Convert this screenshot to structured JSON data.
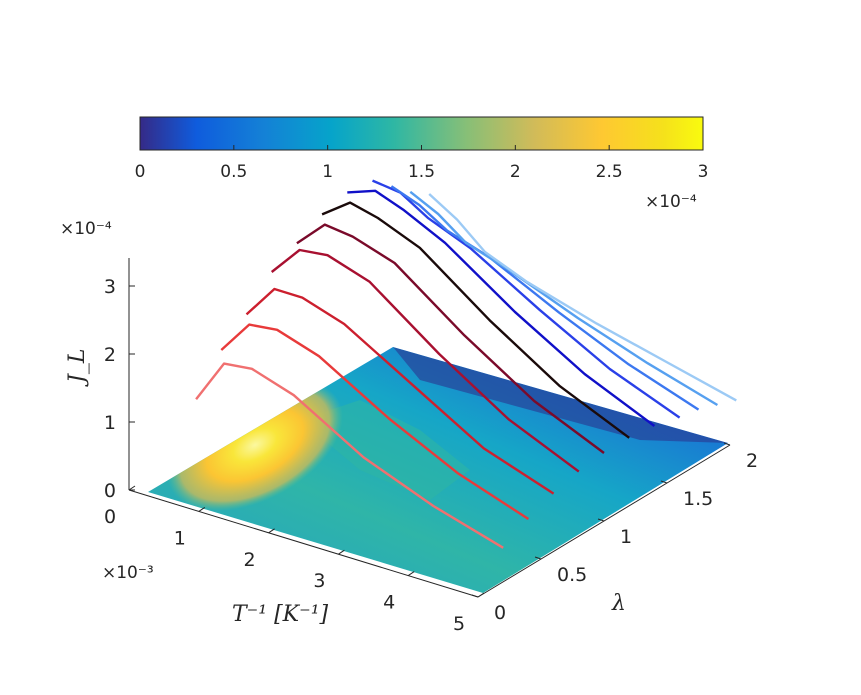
{
  "chart_data": {
    "type": "surface3d-with-lines",
    "title": "",
    "colorbar": {
      "min": 0,
      "max": 3,
      "ticks": [
        "0",
        "0.5",
        "1",
        "1.5",
        "2",
        "2.5",
        "3"
      ],
      "exponent_label": "×10⁻⁴",
      "colormap": "parula"
    },
    "axes": {
      "x": {
        "label": "T⁻¹ [K⁻¹]",
        "ticks": [
          "0",
          "1",
          "2",
          "3",
          "4",
          "5"
        ],
        "exponent_label": "×10⁻³",
        "range": [
          0,
          5
        ]
      },
      "y": {
        "label": "λ",
        "ticks": [
          "0",
          "0.5",
          "1",
          "1.5",
          "2"
        ],
        "range": [
          0,
          2
        ]
      },
      "z": {
        "label": "J_L",
        "ticks": [
          "0",
          "1",
          "2",
          "3"
        ],
        "exponent_label": "×10⁻⁴",
        "range": [
          0,
          3.3
        ]
      }
    },
    "x": [
      0.6,
      1.0,
      1.4,
      2.0,
      3.0,
      4.0,
      5.0
    ],
    "series": [
      {
        "lambda": 0.2,
        "color": "#f07070",
        "values": [
          1.3,
          1.95,
          2.0,
          1.8,
          1.2,
          0.8,
          0.5
        ]
      },
      {
        "lambda": 0.4,
        "color": "#e83a3a",
        "values": [
          1.8,
          2.3,
          2.35,
          2.15,
          1.55,
          1.05,
          0.7
        ]
      },
      {
        "lambda": 0.6,
        "color": "#cc1f2e",
        "values": [
          2.1,
          2.6,
          2.6,
          2.4,
          1.8,
          1.2,
          0.85
        ]
      },
      {
        "lambda": 0.8,
        "color": "#a81030",
        "values": [
          2.5,
          2.95,
          3.0,
          2.8,
          2.05,
          1.4,
          0.95
        ]
      },
      {
        "lambda": 1.0,
        "color": "#7a0a2a",
        "values": [
          2.7,
          3.1,
          3.05,
          2.85,
          2.1,
          1.45,
          1.0
        ]
      },
      {
        "lambda": 1.2,
        "color": "#1a0a0a",
        "values": [
          2.9,
          3.2,
          3.1,
          2.85,
          2.1,
          1.45,
          1.0
        ]
      },
      {
        "lambda": 1.4,
        "color": "#1010c8",
        "values": [
          3.0,
          3.15,
          3.0,
          2.7,
          2.0,
          1.4,
          0.95
        ]
      },
      {
        "lambda": 1.6,
        "color": "#2a40e8",
        "values": [
          2.95,
          2.9,
          2.65,
          2.4,
          1.8,
          1.25,
          0.85
        ]
      },
      {
        "lambda": 1.75,
        "color": "#3c78f0",
        "values": [
          2.7,
          2.55,
          2.3,
          2.1,
          1.6,
          1.15,
          0.8
        ]
      },
      {
        "lambda": 1.9,
        "color": "#56a0f0",
        "values": [
          2.45,
          2.25,
          1.95,
          1.75,
          1.35,
          1.0,
          0.7
        ]
      },
      {
        "lambda": 2.05,
        "color": "#9ccaf5",
        "values": [
          2.25,
          2.0,
          1.65,
          1.4,
          1.1,
          0.85,
          0.6
        ]
      }
    ]
  }
}
